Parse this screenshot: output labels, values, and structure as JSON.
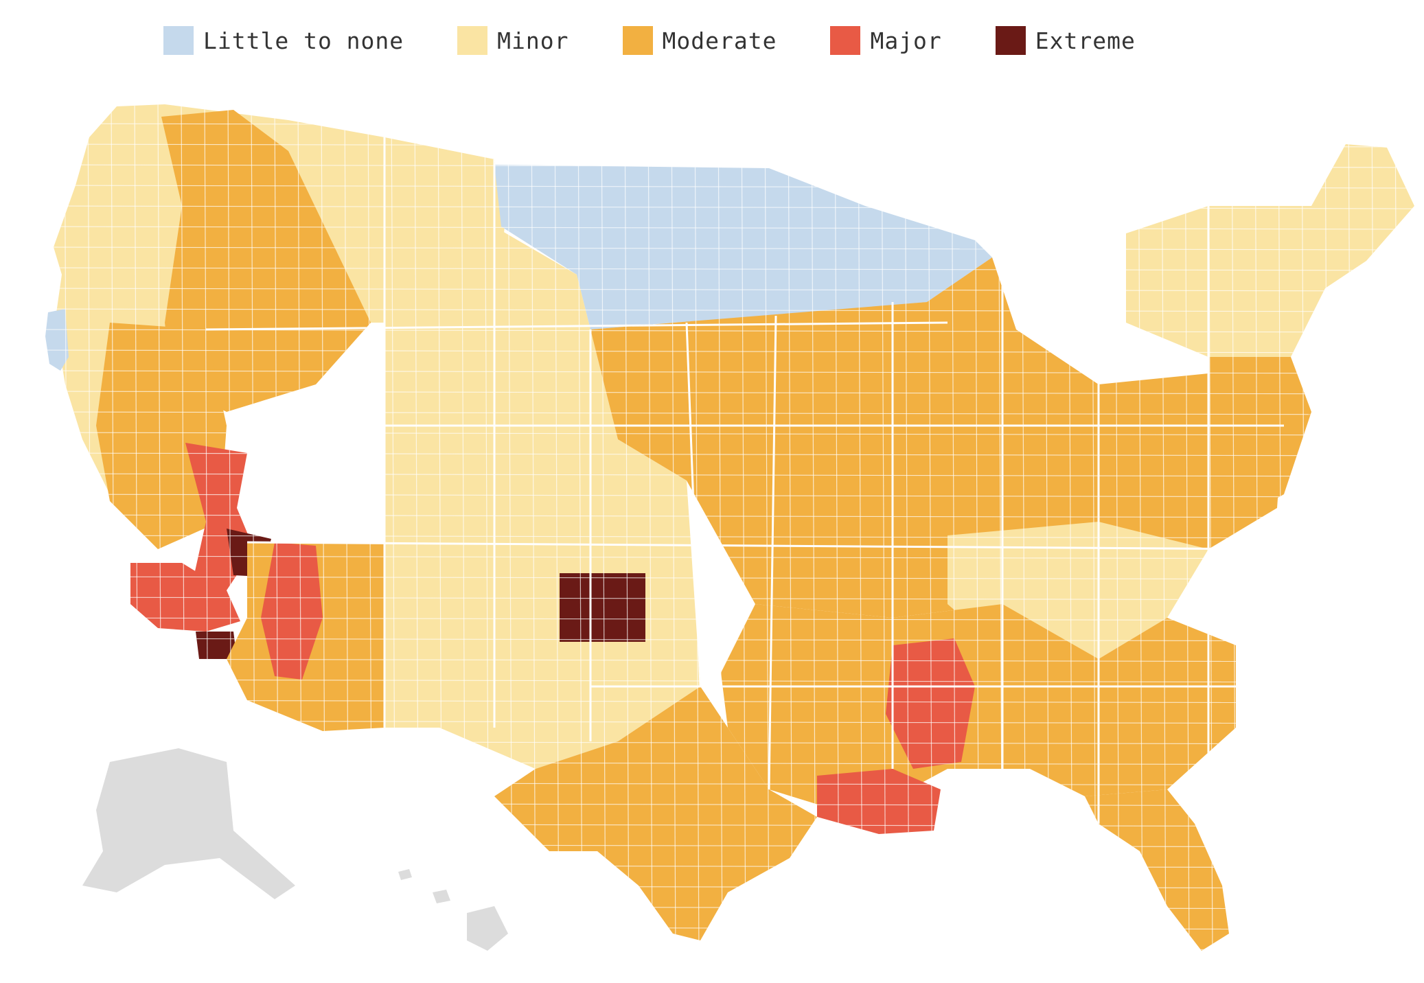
{
  "legend": {
    "items": [
      {
        "label": "Little to none",
        "color": "#c5d9ec"
      },
      {
        "label": "Minor",
        "color": "#fae4a3"
      },
      {
        "label": "Moderate",
        "color": "#f2b041"
      },
      {
        "label": "Major",
        "color": "#e85a45"
      },
      {
        "label": "Extreme",
        "color": "#6a1a16"
      }
    ]
  },
  "map": {
    "territories_color": "#dcdcdc",
    "border_color": "#ffffff",
    "regions": [
      {
        "id": "pacific-northwest",
        "category": "Minor"
      },
      {
        "id": "oregon-coast",
        "category": "Little to none"
      },
      {
        "id": "idaho-oregon-interior",
        "category": "Moderate"
      },
      {
        "id": "nevada-western",
        "category": "Moderate"
      },
      {
        "id": "nevada-central",
        "category": "Major"
      },
      {
        "id": "clark-county-nv",
        "category": "Extreme"
      },
      {
        "id": "southern-california",
        "category": "Major"
      },
      {
        "id": "imperial-county-ca",
        "category": "Extreme"
      },
      {
        "id": "arizona",
        "category": "Moderate"
      },
      {
        "id": "arizona-west",
        "category": "Major"
      },
      {
        "id": "northern-plains",
        "category": "Little to none"
      },
      {
        "id": "great-plains",
        "category": "Minor"
      },
      {
        "id": "southwest-kansas",
        "category": "Extreme"
      },
      {
        "id": "midwest",
        "category": "Moderate"
      },
      {
        "id": "northeast",
        "category": "Minor"
      },
      {
        "id": "mid-atlantic",
        "category": "Moderate"
      },
      {
        "id": "appalachia",
        "category": "Minor"
      },
      {
        "id": "deep-south",
        "category": "Moderate"
      },
      {
        "id": "mississippi-delta",
        "category": "Major"
      },
      {
        "id": "louisiana-south",
        "category": "Major"
      },
      {
        "id": "florida",
        "category": "Moderate"
      },
      {
        "id": "texas",
        "category": "Moderate"
      }
    ]
  }
}
